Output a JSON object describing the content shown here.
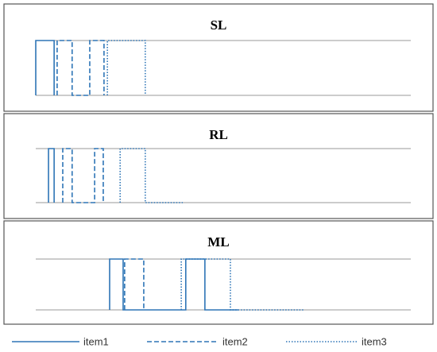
{
  "chart_data": [
    {
      "type": "line",
      "title": "SL",
      "xlim": [
        0,
        100
      ],
      "ylim": [
        0,
        1
      ],
      "grid": true,
      "series": [
        {
          "name": "item1",
          "color": "#2e75b6",
          "style": "solid",
          "x": [
            0,
            0,
            4.9,
            4.9
          ],
          "values": [
            0,
            1,
            1,
            0
          ]
        },
        {
          "name": "item2",
          "color": "#2e75b6",
          "style": "dashed",
          "x": [
            5.7,
            5.7,
            9.7,
            9.7,
            14.4,
            14.4,
            18.2,
            18.2
          ],
          "values": [
            0,
            1,
            1,
            0,
            0,
            1,
            1,
            0
          ]
        },
        {
          "name": "item3",
          "color": "#2e75b6",
          "style": "dotted",
          "x": [
            19.1,
            19.1,
            29.2,
            29.2
          ],
          "values": [
            0,
            1,
            1,
            0
          ]
        }
      ]
    },
    {
      "type": "line",
      "title": "RL",
      "xlim": [
        0,
        100
      ],
      "ylim": [
        0,
        1
      ],
      "grid": true,
      "series": [
        {
          "name": "item1",
          "color": "#2e75b6",
          "style": "solid",
          "x": [
            3.4,
            3.4,
            4.9,
            4.9
          ],
          "values": [
            0,
            1,
            1,
            0
          ]
        },
        {
          "name": "item2",
          "color": "#2e75b6",
          "style": "dashed",
          "x": [
            7.2,
            7.2,
            9.7,
            9.7,
            15.7,
            15.7,
            18.0,
            18.0
          ],
          "values": [
            0,
            1,
            1,
            0,
            0,
            1,
            1,
            0
          ]
        },
        {
          "name": "item3",
          "color": "#2e75b6",
          "style": "dotted",
          "x": [
            22.5,
            22.5,
            29.2,
            29.2,
            39.2
          ],
          "values": [
            0,
            1,
            1,
            0,
            0
          ]
        }
      ]
    },
    {
      "type": "line",
      "title": "ML",
      "xlim": [
        0,
        100
      ],
      "ylim": [
        0,
        1
      ],
      "grid": true,
      "series": [
        {
          "name": "item1",
          "color": "#2e75b6",
          "style": "solid",
          "x": [
            19.7,
            19.7,
            23.3,
            23.3,
            40.0,
            40.0,
            45.1,
            45.1,
            54.0
          ],
          "values": [
            0,
            1,
            1,
            0,
            0,
            1,
            1,
            0,
            0
          ]
        },
        {
          "name": "item2",
          "color": "#2e75b6",
          "style": "dashed",
          "x": [
            23.7,
            23.7,
            28.8,
            28.8
          ],
          "values": [
            0,
            1,
            1,
            0
          ]
        },
        {
          "name": "item3",
          "color": "#2e75b6",
          "style": "dotted",
          "x": [
            38.8,
            38.8,
            51.9,
            51.9,
            71.6
          ],
          "values": [
            0,
            1,
            1,
            0,
            0
          ]
        }
      ]
    }
  ]
}
